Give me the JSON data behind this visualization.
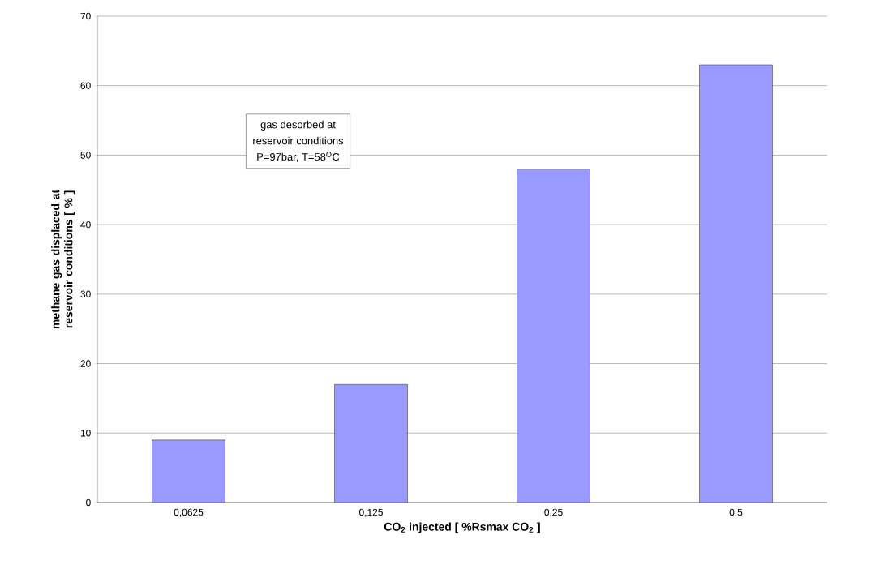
{
  "chart_data": {
    "type": "bar",
    "xlabel": "CO$_{2}$ injected [ %Rsmax CO$_{2}$ ]",
    "ylabel": "methane gas displaced at reservoir conditions [ % ]",
    "categories": [
      "0,0625",
      "0,125",
      "0,25",
      "0,5"
    ],
    "values": [
      9,
      17,
      48,
      63
    ],
    "color": "#9999ff",
    "ylim": [
      0,
      70
    ],
    "yticks": [
      0,
      10,
      20,
      30,
      40,
      50,
      60,
      70
    ],
    "grid": "y",
    "annotations": [
      "gas desorbed at",
      "reservoir conditions",
      "P=97bar, T=58$^{O}$C"
    ]
  }
}
